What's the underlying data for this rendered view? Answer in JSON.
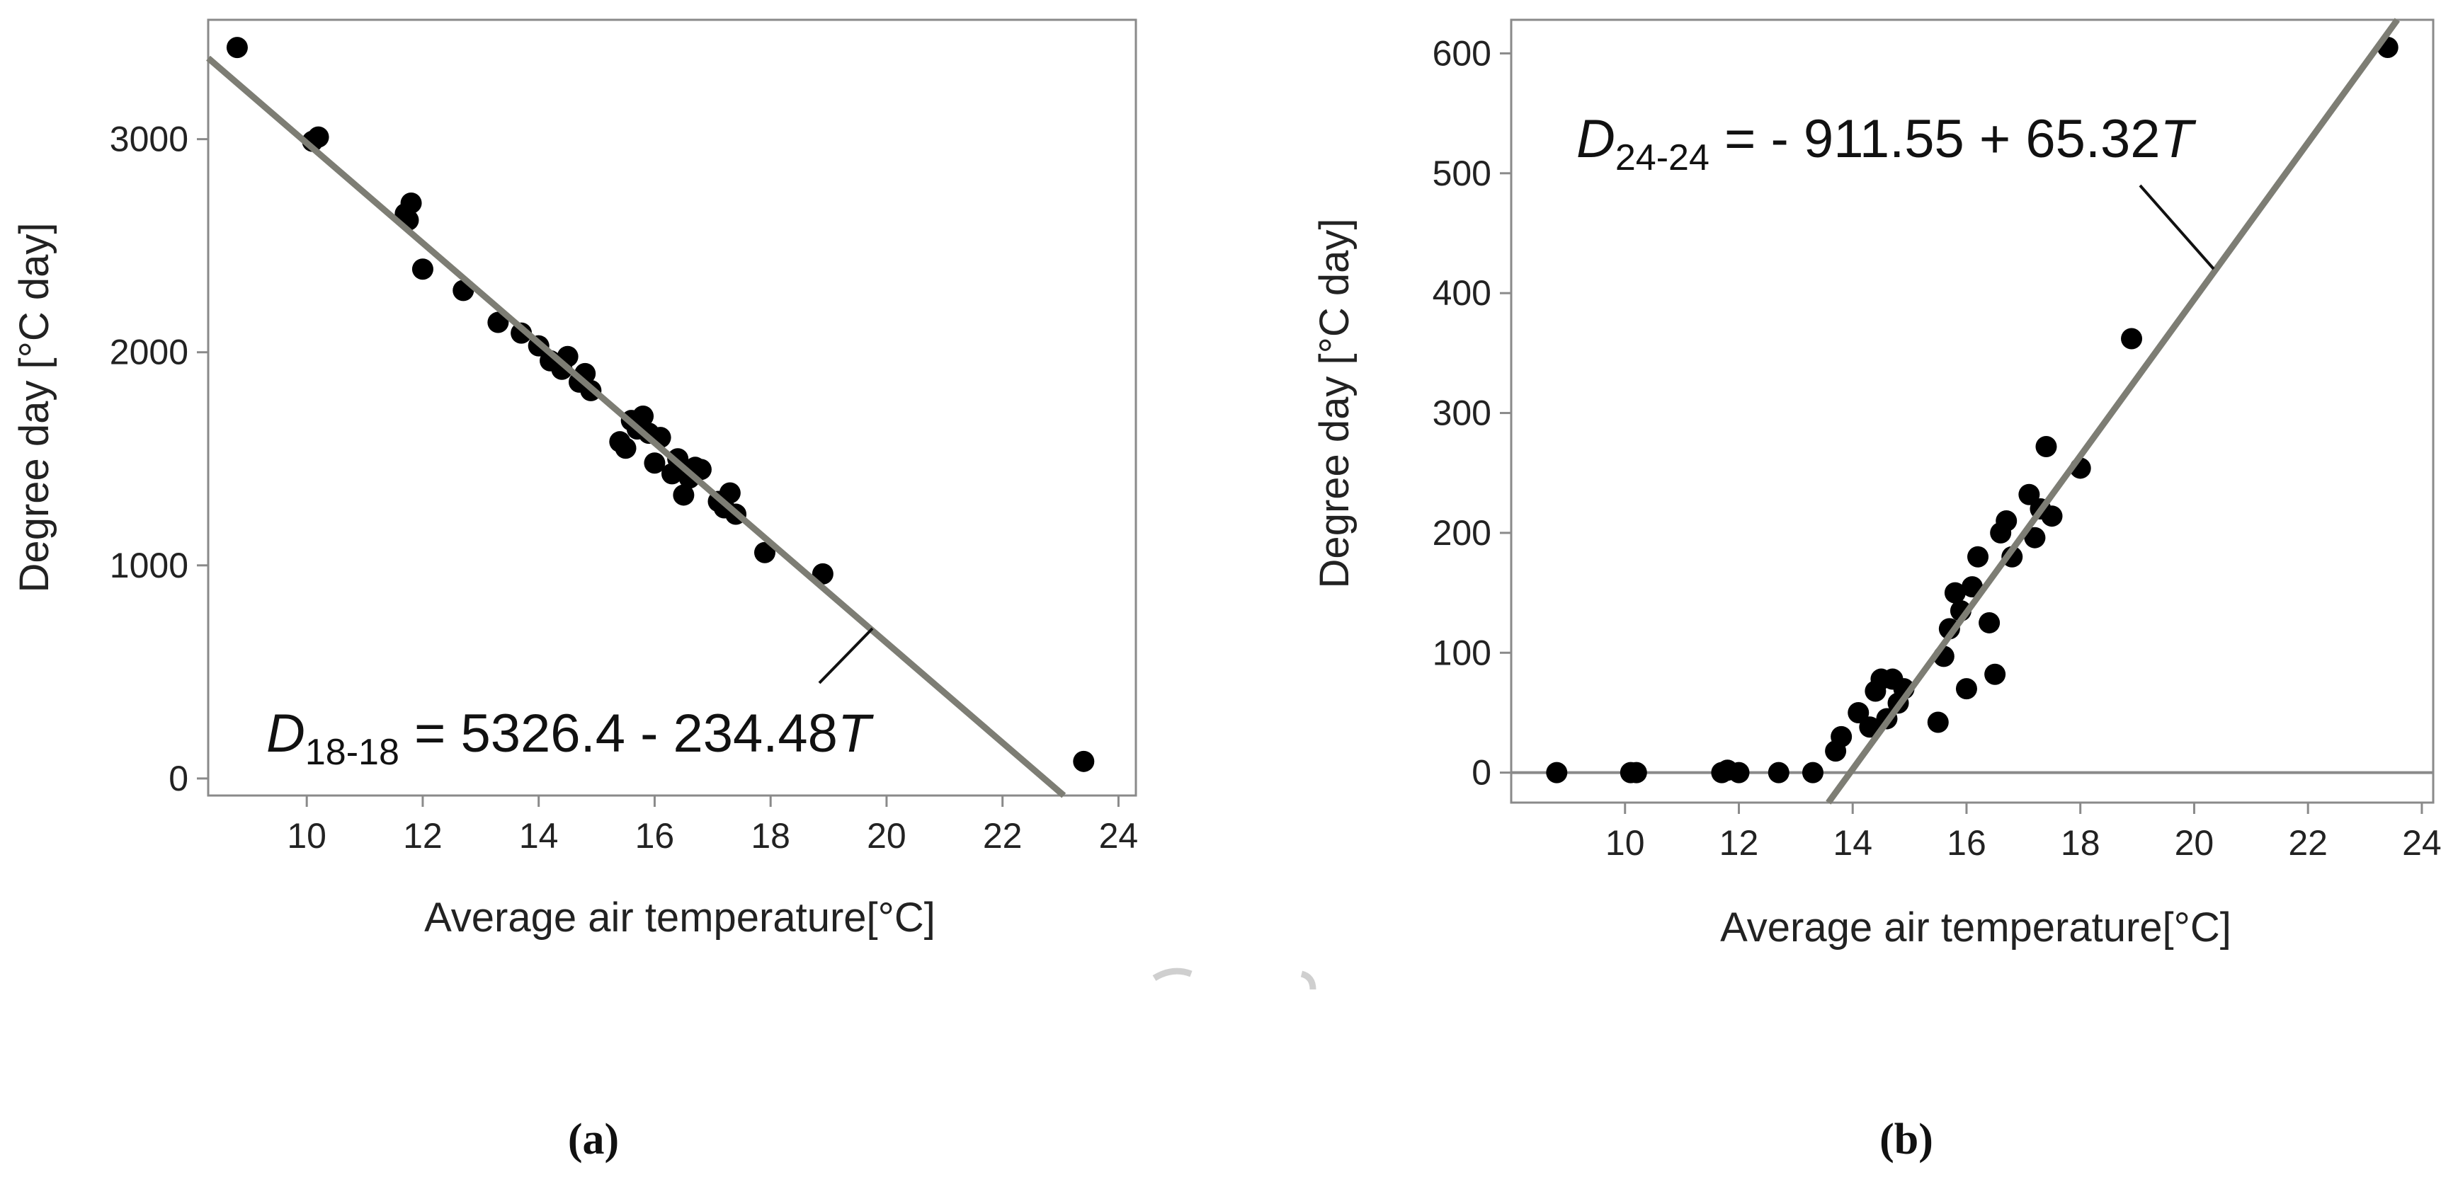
{
  "chart_data": [
    {
      "type": "scatter",
      "panel_label": "(a)",
      "xlabel": "Average air temperature[°C]",
      "ylabel": "Degree day [°C day]",
      "xlim": [
        8.3,
        24.3
      ],
      "ylim": [
        -80,
        3560
      ],
      "x_ticks": [
        10,
        12,
        14,
        16,
        18,
        20,
        22,
        24
      ],
      "y_ticks": [
        0,
        1000,
        2000,
        3000
      ],
      "equation": {
        "d_symbol": "D",
        "subscript": "18-18",
        "rest": " = 5326.4 - 234.48",
        "t_symbol": "T"
      },
      "fit": {
        "intercept": 5326.4,
        "slope": -234.48
      },
      "points": [
        [
          8.8,
          3430
        ],
        [
          10.1,
          2990
        ],
        [
          10.2,
          3010
        ],
        [
          11.7,
          2650
        ],
        [
          11.8,
          2700
        ],
        [
          11.75,
          2620
        ],
        [
          12.0,
          2390
        ],
        [
          12.7,
          2290
        ],
        [
          13.3,
          2140
        ],
        [
          13.7,
          2090
        ],
        [
          14.0,
          2030
        ],
        [
          14.2,
          1960
        ],
        [
          14.4,
          1920
        ],
        [
          14.5,
          1980
        ],
        [
          14.7,
          1860
        ],
        [
          14.8,
          1900
        ],
        [
          14.9,
          1820
        ],
        [
          15.4,
          1580
        ],
        [
          15.5,
          1550
        ],
        [
          15.6,
          1680
        ],
        [
          15.7,
          1640
        ],
        [
          15.8,
          1700
        ],
        [
          15.9,
          1620
        ],
        [
          16.0,
          1480
        ],
        [
          16.1,
          1600
        ],
        [
          16.3,
          1430
        ],
        [
          16.4,
          1500
        ],
        [
          16.5,
          1330
        ],
        [
          16.6,
          1410
        ],
        [
          16.7,
          1460
        ],
        [
          16.8,
          1450
        ],
        [
          17.1,
          1300
        ],
        [
          17.2,
          1270
        ],
        [
          17.3,
          1340
        ],
        [
          17.4,
          1240
        ],
        [
          17.9,
          1060
        ],
        [
          18.9,
          960
        ],
        [
          23.4,
          80
        ]
      ]
    },
    {
      "type": "scatter",
      "panel_label": "(b)",
      "xlabel": "Average air temperature[°C]",
      "ylabel": "Degree day [°C day]",
      "xlim": [
        8.0,
        24.2
      ],
      "ylim": [
        -25,
        628
      ],
      "x_ticks": [
        10,
        12,
        14,
        16,
        18,
        20,
        22,
        24
      ],
      "y_ticks": [
        0,
        100,
        200,
        300,
        400,
        500,
        600
      ],
      "equation": {
        "d_symbol": "D",
        "subscript": "24-24",
        "rest": " = - 911.55 + 65.32",
        "t_symbol": "T"
      },
      "fit": {
        "intercept": -911.55,
        "slope": 65.32
      },
      "baseline": 0,
      "points": [
        [
          8.8,
          0
        ],
        [
          10.1,
          0
        ],
        [
          10.2,
          0
        ],
        [
          11.7,
          0
        ],
        [
          11.8,
          2
        ],
        [
          12.0,
          0
        ],
        [
          12.7,
          0
        ],
        [
          13.3,
          0
        ],
        [
          13.7,
          18
        ],
        [
          13.8,
          30
        ],
        [
          14.1,
          50
        ],
        [
          14.3,
          38
        ],
        [
          14.4,
          68
        ],
        [
          14.5,
          78
        ],
        [
          14.6,
          45
        ],
        [
          14.7,
          78
        ],
        [
          14.8,
          58
        ],
        [
          14.9,
          70
        ],
        [
          15.5,
          42
        ],
        [
          15.6,
          97
        ],
        [
          15.7,
          120
        ],
        [
          15.8,
          150
        ],
        [
          15.9,
          135
        ],
        [
          16.0,
          70
        ],
        [
          16.1,
          155
        ],
        [
          16.2,
          180
        ],
        [
          16.4,
          125
        ],
        [
          16.5,
          82
        ],
        [
          16.6,
          200
        ],
        [
          16.7,
          210
        ],
        [
          16.8,
          180
        ],
        [
          17.1,
          232
        ],
        [
          17.2,
          196
        ],
        [
          17.3,
          220
        ],
        [
          17.5,
          214
        ],
        [
          17.4,
          272
        ],
        [
          18.0,
          254
        ],
        [
          18.9,
          362
        ],
        [
          23.4,
          605
        ]
      ]
    }
  ]
}
